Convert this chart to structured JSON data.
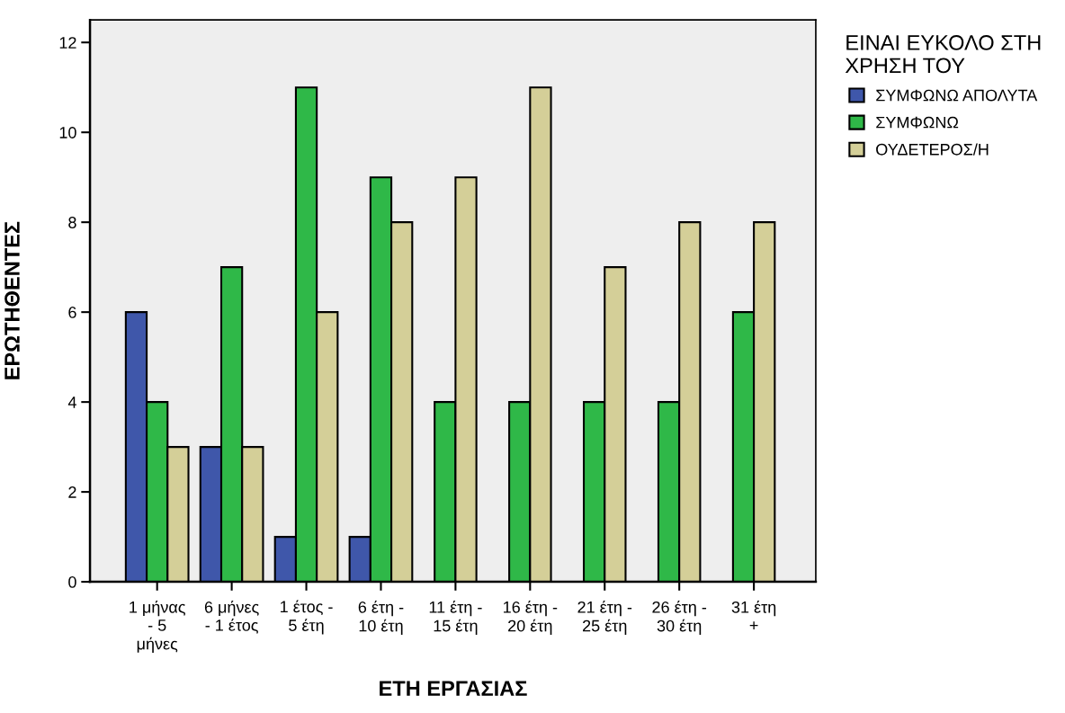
{
  "chart_data": {
    "type": "bar",
    "xlabel": "ΕΤΗ ΕΡΓΑΣΙΑΣ",
    "ylabel": "ΕΡΩΤΗΘΕΝΤΕΣ",
    "legend_title": "ΕΙΝΑΙ ΕΥΚΟΛΟ ΣΤΗ\nΧΡΗΣΗ ΤΟΥ",
    "categories": [
      "1 μήνας\n- 5\nμήνες",
      "6 μήνες\n- 1 έτος",
      "1 έτος -\n5 έτη",
      "6 έτη -\n10 έτη",
      "11 έτη -\n15 έτη",
      "16 έτη -\n20 έτη",
      "21 έτη -\n25 έτη",
      "26 έτη -\n30 έτη",
      "31 έτη\n+"
    ],
    "series": [
      {
        "name": "ΣΥΜΦΩΝΩ ΑΠΟΛΥΤΑ",
        "color": "#3f57aa",
        "values": [
          6,
          3,
          1,
          1,
          null,
          null,
          null,
          null,
          null
        ]
      },
      {
        "name": "ΣΥΜΦΩΝΩ",
        "color": "#2fb848",
        "values": [
          4,
          7,
          11,
          9,
          4,
          4,
          4,
          4,
          6
        ]
      },
      {
        "name": "ΟΥΔΕΤΕΡΟΣ/Η",
        "color": "#d4cf98",
        "values": [
          3,
          3,
          6,
          8,
          9,
          11,
          7,
          8,
          8
        ]
      }
    ],
    "ylim": [
      0,
      12.5
    ],
    "yticks": [
      0,
      2,
      4,
      6,
      8,
      10,
      12
    ],
    "grid": false,
    "legend": "top right"
  }
}
